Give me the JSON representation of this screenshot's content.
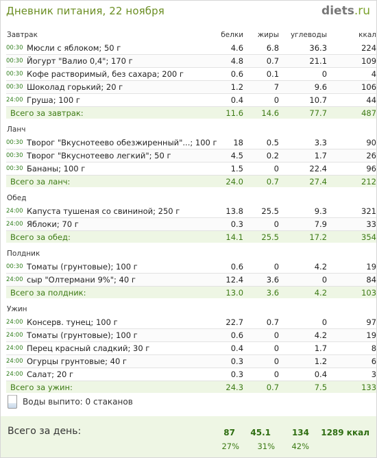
{
  "header": {
    "title": "Дневник питания, 22 ноября",
    "logo_main": "diets",
    "logo_suffix": ".ru"
  },
  "columns": {
    "protein": "белки",
    "fat": "жиры",
    "carbs": "углеводы",
    "kcal": "ккал"
  },
  "meals": [
    {
      "title": "Завтрак",
      "items": [
        {
          "time": "00:30",
          "name": "Мюсли с яблоком; 50 г",
          "protein": "4.6",
          "fat": "6.8",
          "carbs": "36.3",
          "kcal": "224"
        },
        {
          "time": "00:30",
          "name": "Йогурт \"Валио 0,4\"; 170 г",
          "protein": "4.8",
          "fat": "0.7",
          "carbs": "21.1",
          "kcal": "109"
        },
        {
          "time": "00:30",
          "name": "Кофе растворимый, без сахара; 200 г",
          "protein": "0.6",
          "fat": "0.1",
          "carbs": "0",
          "kcal": "4"
        },
        {
          "time": "00:30",
          "name": "Шоколад горький; 20 г",
          "protein": "1.2",
          "fat": "7",
          "carbs": "9.6",
          "kcal": "106"
        },
        {
          "time": "24:00",
          "name": "Груша; 100 г",
          "protein": "0.4",
          "fat": "0",
          "carbs": "10.7",
          "kcal": "44"
        }
      ],
      "total": {
        "label": "Всего за завтрак:",
        "protein": "11.6",
        "fat": "14.6",
        "carbs": "77.7",
        "kcal": "487"
      }
    },
    {
      "title": "Ланч",
      "items": [
        {
          "time": "00:30",
          "name": "Творог \"Вкуснотеево обезжиренный\"...; 100 г",
          "protein": "18",
          "fat": "0.5",
          "carbs": "3.3",
          "kcal": "90"
        },
        {
          "time": "00:30",
          "name": "Творог \"Вкуснотеево легкий\"; 50 г",
          "protein": "4.5",
          "fat": "0.2",
          "carbs": "1.7",
          "kcal": "26"
        },
        {
          "time": "00:30",
          "name": "Бананы; 100 г",
          "protein": "1.5",
          "fat": "0",
          "carbs": "22.4",
          "kcal": "96"
        }
      ],
      "total": {
        "label": "Всего за ланч:",
        "protein": "24.0",
        "fat": "0.7",
        "carbs": "27.4",
        "kcal": "212"
      }
    },
    {
      "title": "Обед",
      "items": [
        {
          "time": "24:00",
          "name": "Капуста тушеная со свининой; 250 г",
          "protein": "13.8",
          "fat": "25.5",
          "carbs": "9.3",
          "kcal": "321"
        },
        {
          "time": "24:00",
          "name": "Яблоки; 70 г",
          "protein": "0.3",
          "fat": "0",
          "carbs": "7.9",
          "kcal": "33"
        }
      ],
      "total": {
        "label": "Всего за обед:",
        "protein": "14.1",
        "fat": "25.5",
        "carbs": "17.2",
        "kcal": "354"
      }
    },
    {
      "title": "Полдник",
      "items": [
        {
          "time": "00:30",
          "name": "Томаты (грунтовые); 100 г",
          "protein": "0.6",
          "fat": "0",
          "carbs": "4.2",
          "kcal": "19"
        },
        {
          "time": "24:00",
          "name": "сыр \"Олтермани 9%\"; 40 г",
          "protein": "12.4",
          "fat": "3.6",
          "carbs": "0",
          "kcal": "84"
        }
      ],
      "total": {
        "label": "Всего за полдник:",
        "protein": "13.0",
        "fat": "3.6",
        "carbs": "4.2",
        "kcal": "103"
      }
    },
    {
      "title": "Ужин",
      "items": [
        {
          "time": "24:00",
          "name": "Консерв. тунец; 100 г",
          "protein": "22.7",
          "fat": "0.7",
          "carbs": "0",
          "kcal": "97"
        },
        {
          "time": "24:00",
          "name": "Томаты (грунтовые); 100 г",
          "protein": "0.6",
          "fat": "0",
          "carbs": "4.2",
          "kcal": "19"
        },
        {
          "time": "24:00",
          "name": "Перец красный сладкий; 30 г",
          "protein": "0.4",
          "fat": "0",
          "carbs": "1.7",
          "kcal": "8"
        },
        {
          "time": "24:00",
          "name": "Огурцы грунтовые; 40 г",
          "protein": "0.3",
          "fat": "0",
          "carbs": "1.2",
          "kcal": "6"
        },
        {
          "time": "24:00",
          "name": "Салат; 20 г",
          "protein": "0.3",
          "fat": "0",
          "carbs": "0.4",
          "kcal": "3"
        }
      ],
      "total": {
        "label": "Всего за ужин:",
        "protein": "24.3",
        "fat": "0.7",
        "carbs": "7.5",
        "kcal": "133"
      }
    }
  ],
  "water": {
    "text": "Воды выпито: 0 стаканов"
  },
  "day_total": {
    "label": "Всего за день:",
    "protein": "87",
    "fat": "45.1",
    "carbs": "134",
    "kcal": "1289 ккал",
    "protein_pct": "27%",
    "fat_pct": "31%",
    "carbs_pct": "42%"
  },
  "colors": {
    "accent_green": "#3c7a14",
    "title_green": "#6b8e23",
    "total_bg": "#eef6e4"
  }
}
